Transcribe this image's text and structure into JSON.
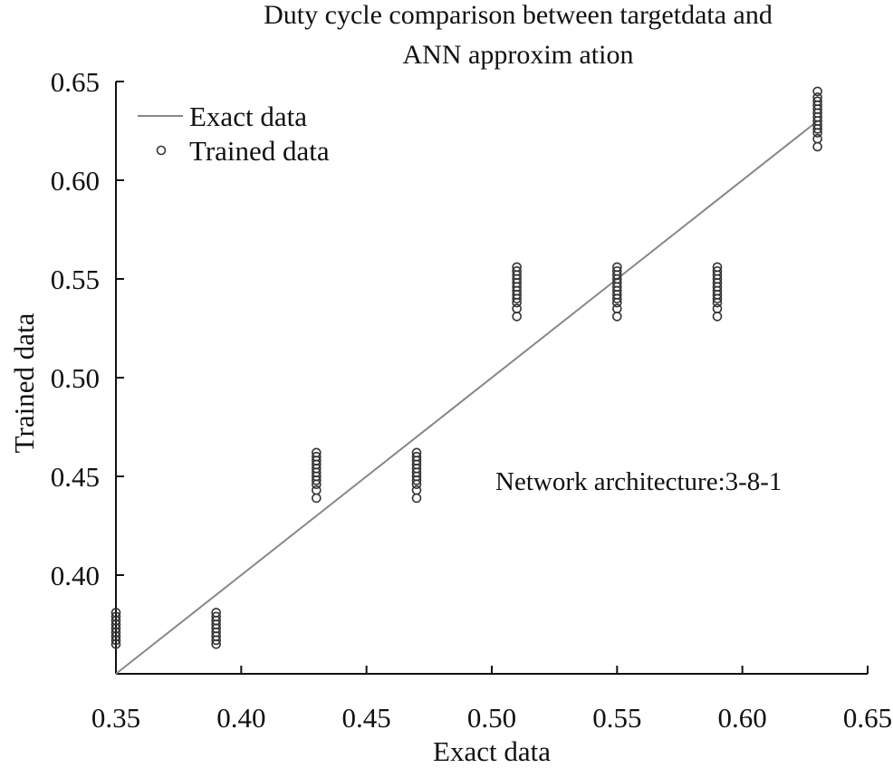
{
  "chart_data": {
    "type": "scatter",
    "title": [
      "Duty cycle comparison between targetdata and",
      "ANN approxim ation"
    ],
    "xlabel": "Exact data",
    "ylabel": "Trained data",
    "xlim": [
      0.35,
      0.65
    ],
    "ylim": [
      0.35,
      0.65
    ],
    "xticks": [
      "0.35",
      "0.40",
      "0.45",
      "0.50",
      "0.55",
      "0.60",
      "0.65"
    ],
    "yticks": [
      "0.40",
      "0.45",
      "0.50",
      "0.55",
      "0.60",
      "0.65"
    ],
    "legend_position": "top-left",
    "annotation": "Network architecture:3-8-1",
    "series": [
      {
        "name": "Exact data",
        "kind": "line",
        "color": "#888888",
        "x": [
          0.35,
          0.63
        ],
        "y": [
          0.35,
          0.63
        ]
      },
      {
        "name": "Trained data",
        "kind": "scatter",
        "marker": "open-circle",
        "color": "#333333",
        "points": [
          {
            "x": 0.35,
            "y": [
              0.365,
              0.367,
              0.369,
              0.371,
              0.373,
              0.375,
              0.377,
              0.379,
              0.381
            ]
          },
          {
            "x": 0.39,
            "y": [
              0.365,
              0.367,
              0.369,
              0.371,
              0.373,
              0.375,
              0.377,
              0.379,
              0.381
            ]
          },
          {
            "x": 0.43,
            "y": [
              0.439,
              0.443,
              0.446,
              0.448,
              0.45,
              0.452,
              0.454,
              0.456,
              0.458,
              0.46,
              0.462
            ]
          },
          {
            "x": 0.47,
            "y": [
              0.439,
              0.443,
              0.446,
              0.448,
              0.45,
              0.452,
              0.454,
              0.456,
              0.458,
              0.46,
              0.462
            ]
          },
          {
            "x": 0.51,
            "y": [
              0.531,
              0.535,
              0.538,
              0.54,
              0.542,
              0.544,
              0.546,
              0.548,
              0.55,
              0.552,
              0.554,
              0.556
            ]
          },
          {
            "x": 0.55,
            "y": [
              0.531,
              0.535,
              0.538,
              0.54,
              0.542,
              0.544,
              0.546,
              0.548,
              0.55,
              0.552,
              0.554,
              0.556
            ]
          },
          {
            "x": 0.59,
            "y": [
              0.531,
              0.535,
              0.538,
              0.54,
              0.542,
              0.544,
              0.546,
              0.548,
              0.55,
              0.552,
              0.554,
              0.556
            ]
          },
          {
            "x": 0.63,
            "y": [
              0.617,
              0.621,
              0.624,
              0.626,
              0.628,
              0.63,
              0.632,
              0.634,
              0.636,
              0.638,
              0.64,
              0.642,
              0.645
            ]
          }
        ]
      }
    ]
  }
}
